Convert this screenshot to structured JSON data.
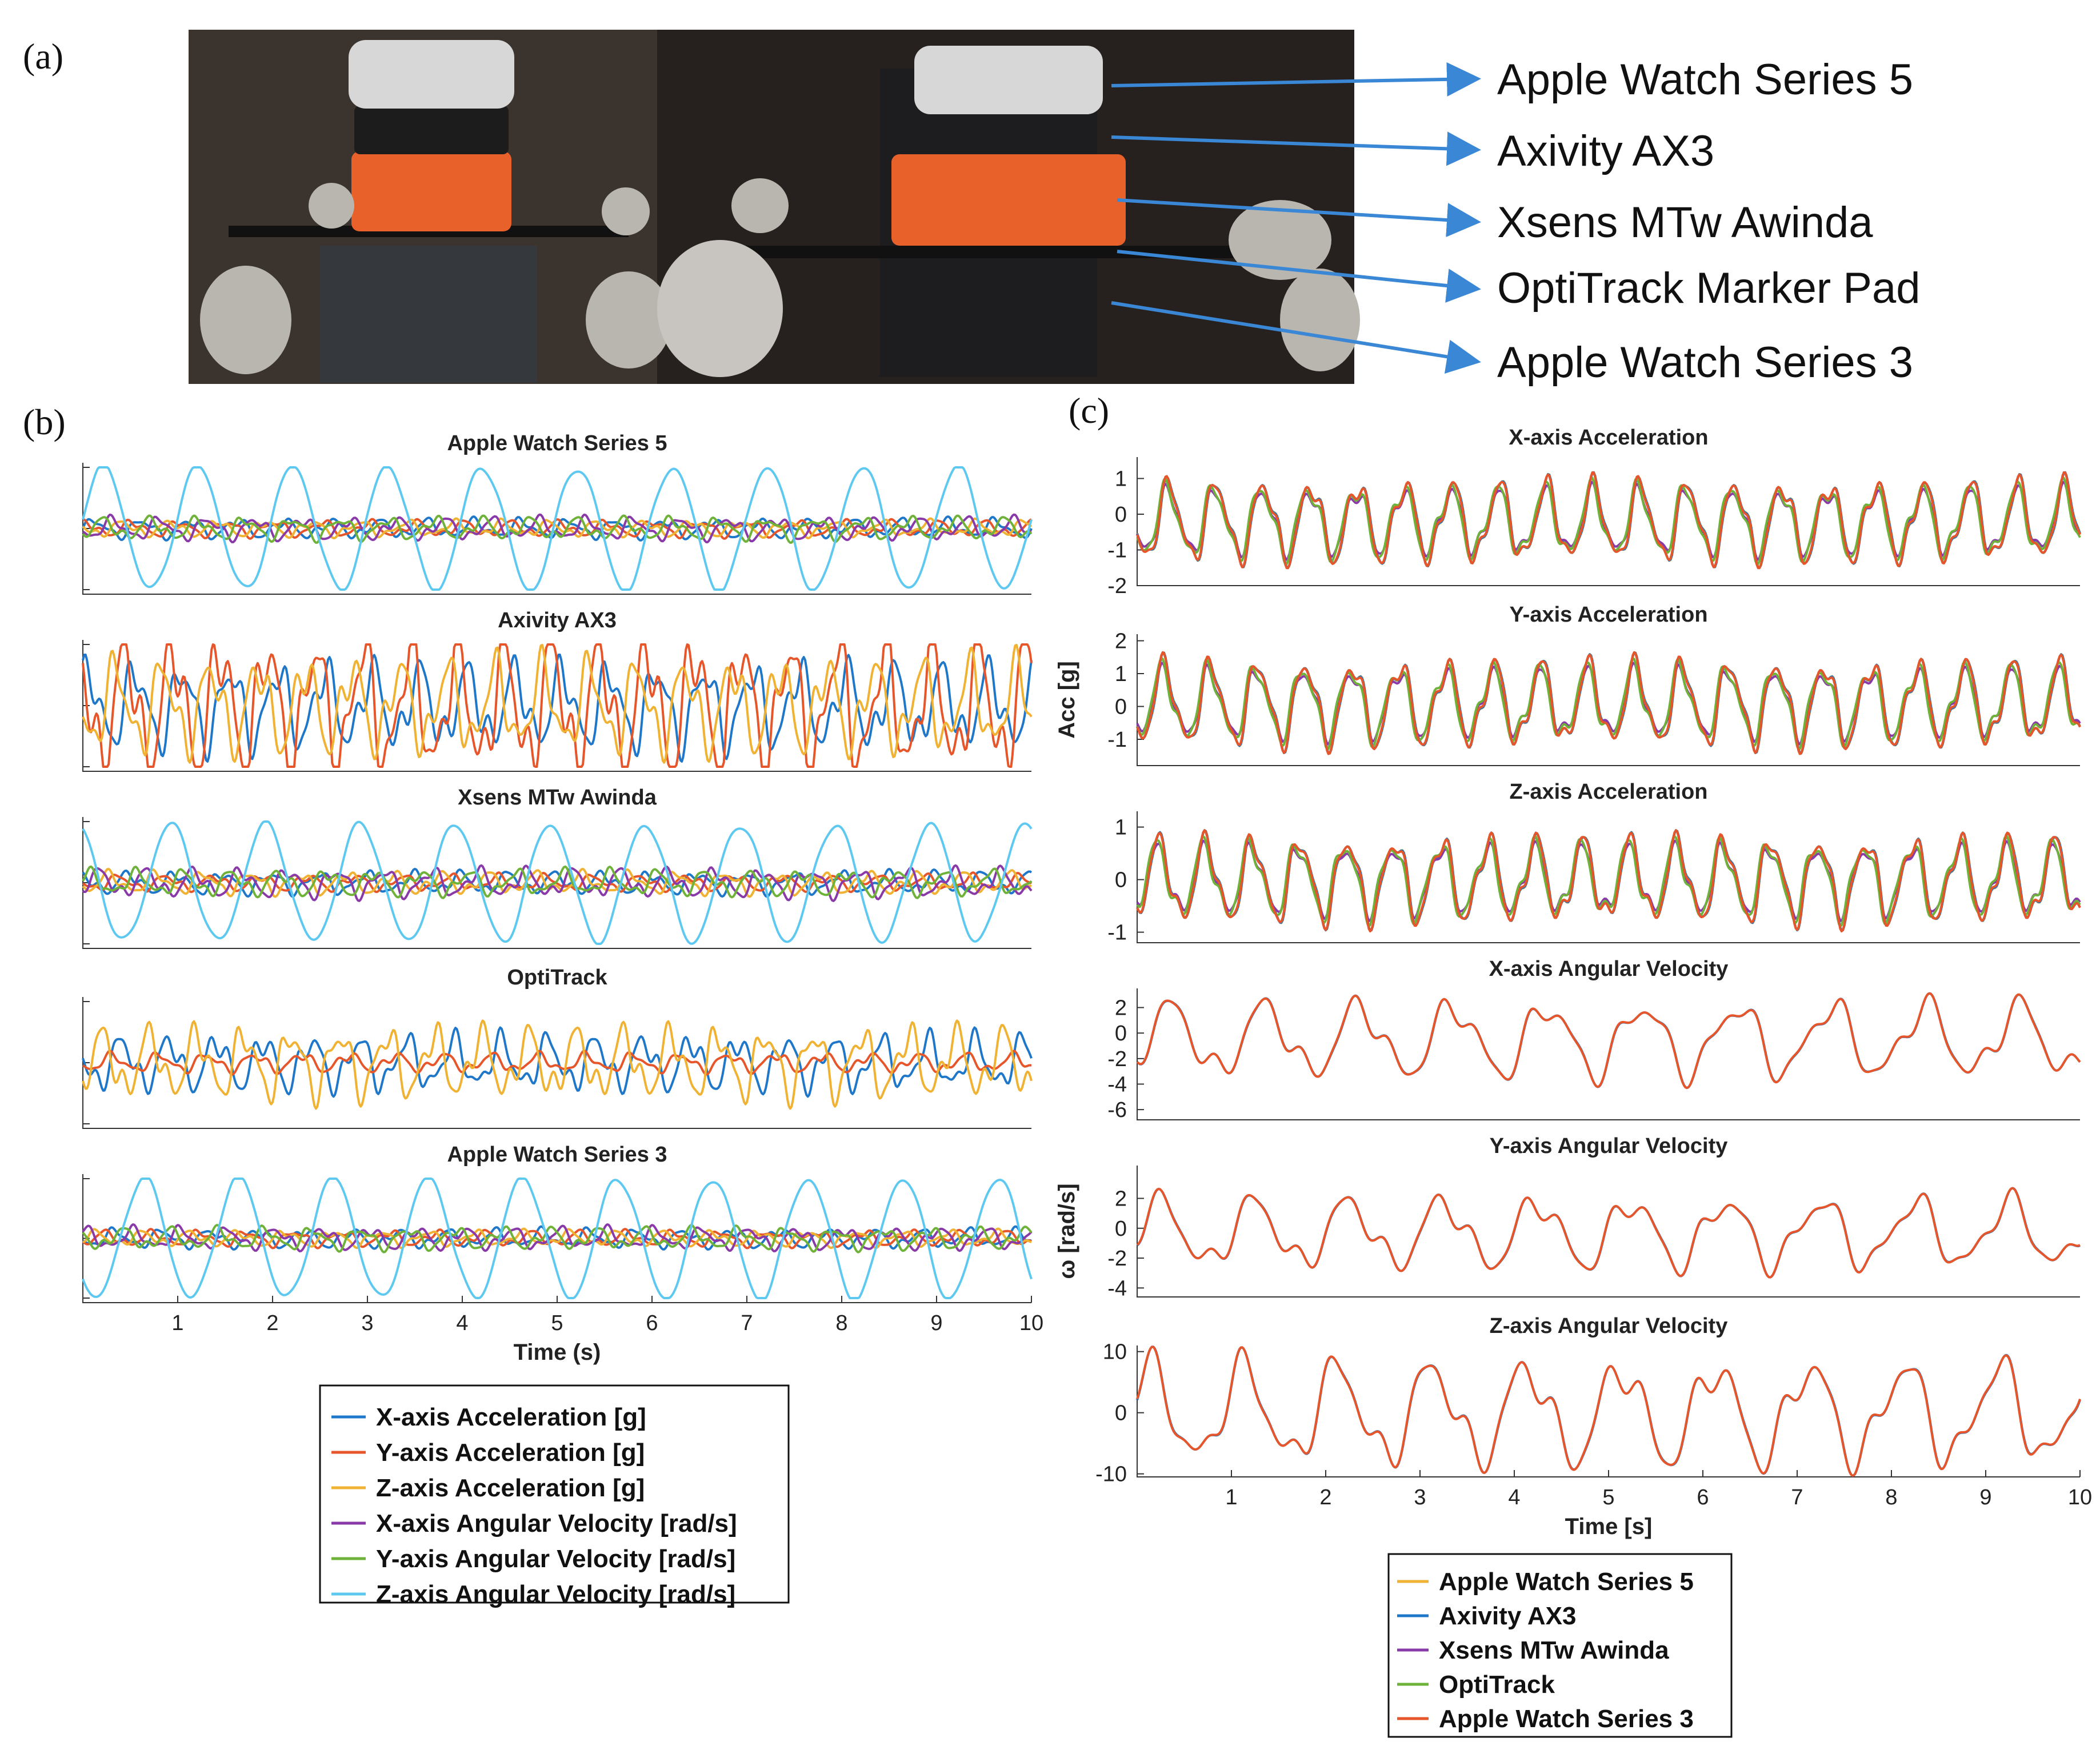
{
  "panel_labels": {
    "a": "(a)",
    "b": "(b)",
    "c": "(c)"
  },
  "photo": {
    "callouts": [
      "Apple Watch Series 5",
      "Axivity AX3",
      "Xsens MTw Awinda",
      "OptiTrack Marker Pad",
      "Apple Watch Series 3"
    ],
    "colors": {
      "background": "#2b2623",
      "device_orange": "#e8612a",
      "marker_grey": "#b9b6b0",
      "arrow": "#3a87d6"
    }
  },
  "colors": {
    "x_acc": "#1f77c9",
    "y_acc": "#e6562a",
    "z_acc": "#f0b232",
    "x_gyr": "#8a3aa8",
    "y_gyr": "#6fb23a",
    "z_gyr": "#5ec9f0",
    "aws5": "#f0b232",
    "ax3": "#1f77c9",
    "xsens": "#8a3aa8",
    "opti": "#6fb23a",
    "aws3": "#e6562a"
  },
  "chart_data": [
    {
      "type": "line",
      "panel": "(b)",
      "title": "Apple Watch Series 5",
      "x_range": [
        0,
        10
      ],
      "series_keys": [
        "x_acc",
        "y_acc",
        "z_acc",
        "x_gyr",
        "y_gyr",
        "z_gyr"
      ],
      "amplitudes": {
        "x_acc": 0.12,
        "y_acc": 0.1,
        "z_acc": 0.1,
        "x_gyr": 0.14,
        "y_gyr": 0.14,
        "z_gyr": 1.0
      }
    },
    {
      "type": "line",
      "panel": "(b)",
      "title": "Axivity AX3",
      "x_range": [
        0,
        10
      ],
      "series_keys": [
        "x_acc",
        "y_acc",
        "z_acc"
      ],
      "amplitudes": {
        "x_acc": 0.55,
        "y_acc": 0.9,
        "z_acc": 0.6
      }
    },
    {
      "type": "line",
      "panel": "(b)",
      "title": "Xsens MTw Awinda",
      "x_range": [
        0,
        10
      ],
      "series_keys": [
        "x_acc",
        "y_acc",
        "z_acc",
        "x_gyr",
        "y_gyr",
        "z_gyr"
      ],
      "amplitudes": {
        "x_acc": 0.14,
        "y_acc": 0.1,
        "z_acc": 0.14,
        "x_gyr": 0.18,
        "y_gyr": 0.16,
        "z_gyr": 0.95
      }
    },
    {
      "type": "line",
      "panel": "(b)",
      "title": "OptiTrack",
      "x_range": [
        0,
        10
      ],
      "series_keys": [
        "x_acc",
        "y_acc",
        "z_acc"
      ],
      "amplitudes": {
        "x_acc": 0.35,
        "y_acc": 0.12,
        "z_acc": 0.45
      }
    },
    {
      "type": "line",
      "panel": "(b)",
      "title": "Apple Watch Series 3",
      "x_range": [
        0,
        10
      ],
      "xlabel": "Time (s)",
      "x_ticks": [
        1,
        2,
        3,
        4,
        5,
        6,
        7,
        8,
        9,
        10
      ],
      "series_keys": [
        "x_acc",
        "y_acc",
        "z_acc",
        "x_gyr",
        "y_gyr",
        "z_gyr"
      ],
      "amplitudes": {
        "x_acc": 0.12,
        "y_acc": 0.1,
        "z_acc": 0.1,
        "x_gyr": 0.14,
        "y_gyr": 0.14,
        "z_gyr": 1.0
      }
    },
    {
      "type": "line",
      "panel": "(c)",
      "title": "X-axis Acceleration",
      "x_range": [
        0,
        10
      ],
      "ylim": [
        -2,
        1.6
      ],
      "y_ticks": [
        1,
        0,
        -1,
        -2
      ],
      "series_keys": [
        "aws5",
        "ax3",
        "xsens",
        "opti",
        "aws3"
      ],
      "signal": {
        "offset": -0.2,
        "amplitude": 1.4,
        "freq": 2.0
      }
    },
    {
      "type": "line",
      "panel": "(c)",
      "title": "Y-axis Acceleration",
      "x_range": [
        0,
        10
      ],
      "ylim": [
        -1.8,
        2.2
      ],
      "y_ticks": [
        2,
        1,
        0,
        -1
      ],
      "ylabel": "Acc [g]",
      "series_keys": [
        "aws5",
        "ax3",
        "xsens",
        "opti",
        "aws3"
      ],
      "signal": {
        "offset": 0.1,
        "amplitude": 1.6,
        "freq": 2.0
      }
    },
    {
      "type": "line",
      "panel": "(c)",
      "title": "Z-axis Acceleration",
      "x_range": [
        0,
        10
      ],
      "ylim": [
        -1.2,
        1.3
      ],
      "y_ticks": [
        1,
        0,
        -1
      ],
      "series_keys": [
        "aws5",
        "ax3",
        "xsens",
        "opti",
        "aws3"
      ],
      "signal": {
        "offset": 0.0,
        "amplitude": 1.0,
        "freq": 2.0
      }
    },
    {
      "type": "line",
      "panel": "(c)",
      "title": "X-axis Angular Velocity",
      "x_range": [
        0,
        10
      ],
      "ylim": [
        -6.8,
        3.5
      ],
      "y_ticks": [
        2,
        0,
        -2,
        -4,
        -6
      ],
      "series_keys": [
        "ax3",
        "aws3"
      ],
      "signal": {
        "offset": -0.5,
        "amplitude": 3.5,
        "freq": 1.0
      }
    },
    {
      "type": "line",
      "panel": "(c)",
      "title": "Y-axis Angular Velocity",
      "x_range": [
        0,
        10
      ],
      "ylim": [
        -4.6,
        4.2
      ],
      "y_ticks": [
        2,
        0,
        -2,
        -4
      ],
      "ylabel": "ω [rad/s]",
      "series_keys": [
        "ax3",
        "aws3"
      ],
      "signal": {
        "offset": -0.3,
        "amplitude": 2.8,
        "freq": 1.0
      }
    },
    {
      "type": "line",
      "panel": "(c)",
      "title": "Z-axis Angular Velocity",
      "x_range": [
        0,
        10
      ],
      "ylim": [
        -10.5,
        11
      ],
      "y_ticks": [
        10,
        0,
        -10
      ],
      "xlabel": "Time [s]",
      "x_ticks": [
        1,
        2,
        3,
        4,
        5,
        6,
        7,
        8,
        9,
        10
      ],
      "series_keys": [
        "ax3",
        "aws3"
      ],
      "signal": {
        "offset": 0.0,
        "amplitude": 10,
        "freq": 1.0
      }
    }
  ],
  "legend_b": [
    {
      "key": "x_acc",
      "label": "X-axis Acceleration [g]"
    },
    {
      "key": "y_acc",
      "label": "Y-axis Acceleration [g]"
    },
    {
      "key": "z_acc",
      "label": "Z-axis Acceleration [g]"
    },
    {
      "key": "x_gyr",
      "label": "X-axis Angular Velocity [rad/s]"
    },
    {
      "key": "y_gyr",
      "label": "Y-axis Angular Velocity [rad/s]"
    },
    {
      "key": "z_gyr",
      "label": "Z-axis Angular Velocity [rad/s]"
    }
  ],
  "legend_c": [
    {
      "key": "aws5",
      "label": "Apple Watch Series 5"
    },
    {
      "key": "ax3",
      "label": "Axivity AX3"
    },
    {
      "key": "xsens",
      "label": "Xsens MTw Awinda"
    },
    {
      "key": "opti",
      "label": "OptiTrack"
    },
    {
      "key": "aws3",
      "label": "Apple Watch Series 3"
    }
  ]
}
